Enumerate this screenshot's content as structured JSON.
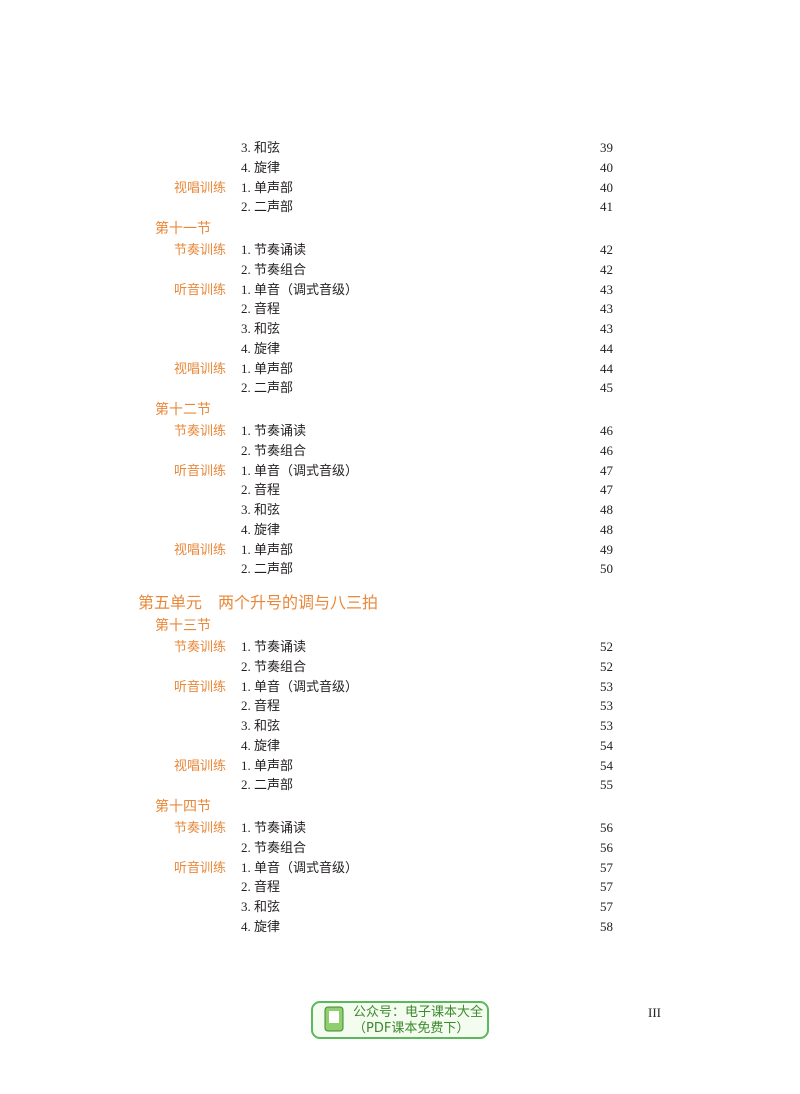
{
  "toc": {
    "entries": [
      {
        "kind": "item",
        "title": "3. 和弦",
        "page": 39
      },
      {
        "kind": "item",
        "title": "4. 旋律",
        "page": 40
      },
      {
        "kind": "item",
        "category": "视唱训练",
        "title": "1. 单声部",
        "page": 40
      },
      {
        "kind": "item",
        "title": "2. 二声部",
        "page": 41
      },
      {
        "kind": "section",
        "title": "第十一节"
      },
      {
        "kind": "item",
        "category": "节奏训练",
        "title": "1. 节奏诵读",
        "page": 42
      },
      {
        "kind": "item",
        "title": "2. 节奏组合",
        "page": 42
      },
      {
        "kind": "item",
        "category": "听音训练",
        "title": "1. 单音（调式音级）",
        "page": 43
      },
      {
        "kind": "item",
        "title": "2. 音程",
        "page": 43
      },
      {
        "kind": "item",
        "title": "3. 和弦",
        "page": 43
      },
      {
        "kind": "item",
        "title": "4. 旋律",
        "page": 44
      },
      {
        "kind": "item",
        "category": "视唱训练",
        "title": "1. 单声部",
        "page": 44
      },
      {
        "kind": "item",
        "title": "2. 二声部",
        "page": 45
      },
      {
        "kind": "section",
        "title": "第十二节"
      },
      {
        "kind": "item",
        "category": "节奏训练",
        "title": "1. 节奏诵读",
        "page": 46
      },
      {
        "kind": "item",
        "title": "2. 节奏组合",
        "page": 46
      },
      {
        "kind": "item",
        "category": "听音训练",
        "title": "1. 单音（调式音级）",
        "page": 47
      },
      {
        "kind": "item",
        "title": "2. 音程",
        "page": 47
      },
      {
        "kind": "item",
        "title": "3. 和弦",
        "page": 48
      },
      {
        "kind": "item",
        "title": "4. 旋律",
        "page": 48
      },
      {
        "kind": "item",
        "category": "视唱训练",
        "title": "1. 单声部",
        "page": 49
      },
      {
        "kind": "item",
        "title": "2. 二声部",
        "page": 50
      },
      {
        "kind": "unit",
        "title": "第五单元　两个升号的调与八三拍"
      },
      {
        "kind": "section",
        "title": "第十三节"
      },
      {
        "kind": "item",
        "category": "节奏训练",
        "title": "1. 节奏诵读",
        "page": 52
      },
      {
        "kind": "item",
        "title": "2. 节奏组合",
        "page": 52
      },
      {
        "kind": "item",
        "category": "听音训练",
        "title": "1. 单音（调式音级）",
        "page": 53
      },
      {
        "kind": "item",
        "title": "2. 音程",
        "page": 53
      },
      {
        "kind": "item",
        "title": "3. 和弦",
        "page": 53
      },
      {
        "kind": "item",
        "title": "4. 旋律",
        "page": 54
      },
      {
        "kind": "item",
        "category": "视唱训练",
        "title": "1. 单声部",
        "page": 54
      },
      {
        "kind": "item",
        "title": "2. 二声部",
        "page": 55
      },
      {
        "kind": "section",
        "title": "第十四节"
      },
      {
        "kind": "item",
        "category": "节奏训练",
        "title": "1. 节奏诵读",
        "page": 56
      },
      {
        "kind": "item",
        "title": "2. 节奏组合",
        "page": 56
      },
      {
        "kind": "item",
        "category": "听音训练",
        "title": "1. 单音（调式音级）",
        "page": 57
      },
      {
        "kind": "item",
        "title": "2. 音程",
        "page": 57
      },
      {
        "kind": "item",
        "title": "3. 和弦",
        "page": 57
      },
      {
        "kind": "item",
        "title": "4. 旋律",
        "page": 58
      }
    ]
  },
  "watermark": {
    "line1": "公众号：电子课本大全",
    "line2": "（PDF课本免费下）"
  },
  "footer": {
    "page_number": "III"
  }
}
